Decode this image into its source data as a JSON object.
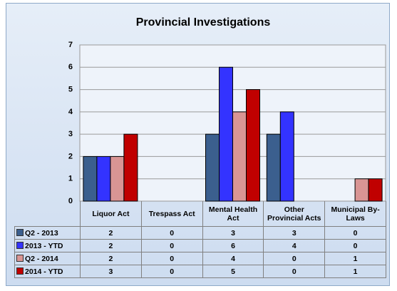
{
  "chart_data": {
    "type": "bar",
    "title": "Provincial Investigations",
    "categories": [
      "Liquor Act",
      "Trespass Act",
      "Mental Health Act",
      "Other Provincial Acts",
      "Municipal By-Laws"
    ],
    "series": [
      {
        "name": "Q2 - 2013",
        "color": "#3b5f8e",
        "values": [
          2,
          0,
          3,
          3,
          0
        ]
      },
      {
        "name": "2013 - YTD",
        "color": "#3333ff",
        "values": [
          2,
          0,
          6,
          4,
          0
        ]
      },
      {
        "name": "Q2 - 2014",
        "color": "#d99594",
        "values": [
          2,
          0,
          4,
          0,
          1
        ]
      },
      {
        "name": "2014 - YTD",
        "color": "#c00000",
        "values": [
          3,
          0,
          5,
          0,
          1
        ]
      }
    ],
    "ylim": [
      0,
      7
    ],
    "yticks": [
      0,
      1,
      2,
      3,
      4,
      5,
      6,
      7
    ],
    "grid": true
  }
}
